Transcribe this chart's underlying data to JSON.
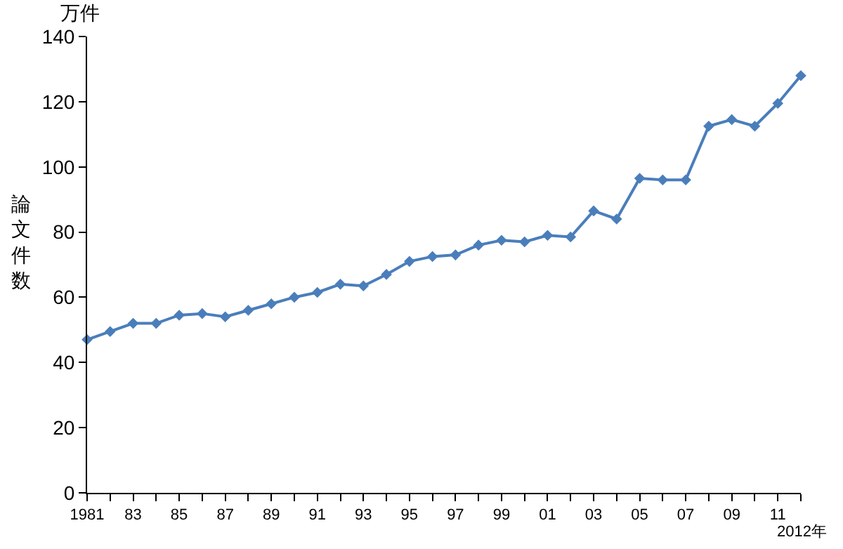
{
  "chart_data": {
    "type": "line",
    "ylabel": "論文件数",
    "annotations": [
      "万件"
    ],
    "categories": [
      "1981",
      null,
      "83",
      null,
      "85",
      null,
      "87",
      null,
      "89",
      null,
      "91",
      null,
      "93",
      null,
      "95",
      null,
      "97",
      null,
      "99",
      null,
      "01",
      null,
      "03",
      null,
      "05",
      null,
      "07",
      null,
      "09",
      null,
      "11",
      "2012年"
    ],
    "series": [
      {
        "color": "#4a7ebb",
        "values": [
          47,
          49.5,
          52,
          52,
          54.5,
          55,
          54,
          56,
          58,
          60,
          61.5,
          64,
          63.5,
          67,
          71,
          72.5,
          73,
          76,
          77.5,
          77,
          79,
          78.5,
          86.5,
          84,
          96.5,
          96,
          96,
          112.5,
          114.5,
          112.5,
          119.5,
          128
        ]
      }
    ],
    "ylim": [
      0,
      140
    ],
    "yticks": [
      0,
      20,
      40,
      60,
      80,
      100,
      120,
      140
    ],
    "grid": false,
    "marker": "diamond",
    "line_style": "solid"
  }
}
